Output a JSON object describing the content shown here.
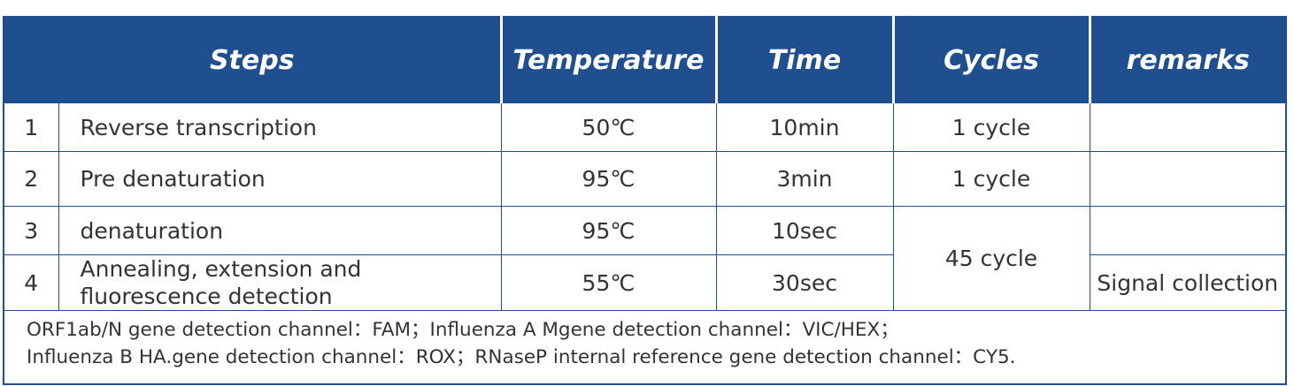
{
  "table": {
    "header": [
      "Steps",
      "Temperature",
      "Time",
      "Cycles",
      "remarks"
    ],
    "rows": [
      {
        "no": "1",
        "step": "Reverse transcription",
        "temperature": "50℃",
        "time": "10min",
        "cycles": "1 cycle"
      },
      {
        "no": "2",
        "step": "Pre denaturation",
        "temperature": "95℃",
        "time": "3min",
        "cycles": "1 cycle"
      },
      {
        "no": "3",
        "step": "denaturation",
        "temperature": "95℃",
        "time": "10sec",
        "cycles": "45 cycle"
      },
      {
        "no": "4",
        "step": "Annealing, extension and fluorescence detection",
        "temperature": "55℃",
        "time": "30sec",
        "remarks": "Signal collection"
      }
    ],
    "notes": [
      "ORF1ab/N gene detection channel：FAM；Influenza A Mgene detection channel：VIC/HEX；",
      "Influenza B HA.gene detection channel：ROX；RNaseP internal reference gene detection channel：CY5."
    ]
  }
}
